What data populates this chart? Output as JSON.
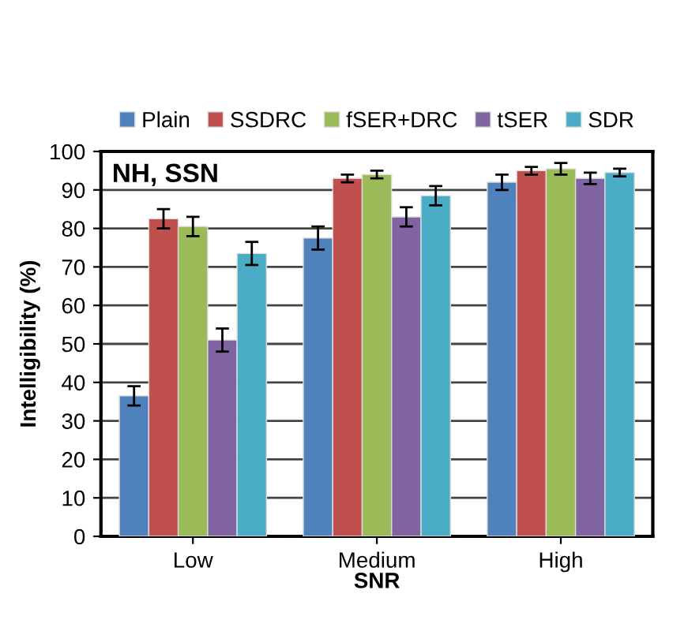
{
  "chart_data": {
    "type": "bar",
    "xlabel": "SNR",
    "ylabel": "Intelligibility (%)",
    "annotations": [
      "NH, SSN"
    ],
    "categories": [
      "Low",
      "Medium",
      "High"
    ],
    "series": [
      {
        "name": "Plain",
        "color": "#4f81bd",
        "values": [
          36.5,
          77.5,
          92
        ],
        "errors": [
          2.5,
          3,
          2
        ]
      },
      {
        "name": "SSDRC",
        "color": "#c0504d",
        "values": [
          82.5,
          93,
          95
        ],
        "errors": [
          2.5,
          1,
          1
        ]
      },
      {
        "name": "fSER+DRC",
        "color": "#9bbb59",
        "values": [
          80.5,
          94,
          95.5
        ],
        "errors": [
          2.5,
          1,
          1.5
        ]
      },
      {
        "name": "tSER",
        "color": "#8064a2",
        "values": [
          51,
          83,
          93
        ],
        "errors": [
          3,
          2.5,
          1.5
        ]
      },
      {
        "name": "SDR",
        "color": "#4bacc6",
        "values": [
          73.5,
          88.5,
          94.5
        ],
        "errors": [
          3,
          2.5,
          1
        ]
      }
    ],
    "ylim": [
      0,
      100
    ],
    "yticks": [
      0,
      10,
      20,
      30,
      40,
      50,
      60,
      70,
      80,
      90,
      100
    ],
    "grid": "y",
    "legend": "top"
  }
}
